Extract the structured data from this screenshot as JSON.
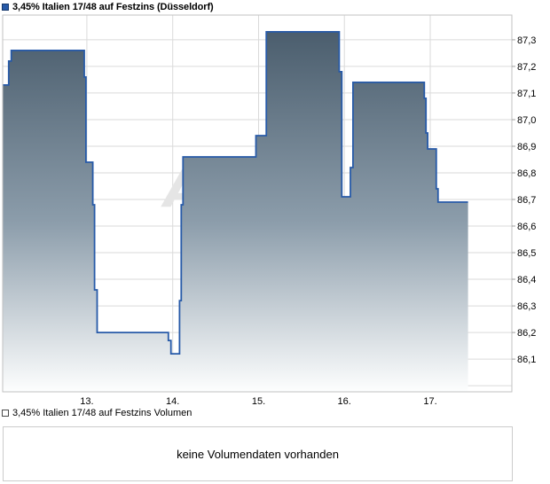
{
  "header": {
    "series_label": "3,45% Italien 17/48 auf Festzins (Düsseldorf)",
    "marker_color": "#275aa8"
  },
  "chart_data": {
    "type": "area",
    "step": "after",
    "title": "3,45% Italien 17/48 auf Festzins (Düsseldorf)",
    "xlabel": "",
    "ylabel": "",
    "grid": true,
    "legend_position": "top-left",
    "x_axis": {
      "ticks": [
        13,
        14,
        15,
        16,
        17
      ],
      "tick_labels": [
        "13.",
        "14.",
        "15.",
        "16.",
        "17."
      ],
      "range": [
        12.02,
        17.95
      ]
    },
    "y_axis": {
      "side": "right",
      "ticks": [
        87.3,
        87.2,
        87.1,
        87.0,
        86.9,
        86.8,
        86.7,
        86.6,
        86.5,
        86.4,
        86.3,
        86.2,
        86.1
      ],
      "tick_labels": [
        "87,3",
        "87,2",
        "87,1",
        "87,0",
        "86,9",
        "86,8",
        "86,7",
        "86,6",
        "86,5",
        "86,4",
        "86,3",
        "86,2",
        "86,1"
      ],
      "range": [
        85.977,
        87.393
      ],
      "extra_gridlines": [
        86.0
      ]
    },
    "series": [
      {
        "name": "3,45% Italien 17/48 auf Festzins",
        "points": [
          [
            12.02,
            87.13
          ],
          [
            12.09,
            87.22
          ],
          [
            12.12,
            87.26
          ],
          [
            12.97,
            87.16
          ],
          [
            12.99,
            86.84
          ],
          [
            13.07,
            86.68
          ],
          [
            13.09,
            86.36
          ],
          [
            13.12,
            86.2
          ],
          [
            13.95,
            86.17
          ],
          [
            13.98,
            86.12
          ],
          [
            14.08,
            86.32
          ],
          [
            14.1,
            86.68
          ],
          [
            14.12,
            86.86
          ],
          [
            14.97,
            86.94
          ],
          [
            15.09,
            87.33
          ],
          [
            15.94,
            87.18
          ],
          [
            15.97,
            86.71
          ],
          [
            16.07,
            86.82
          ],
          [
            16.1,
            87.14
          ],
          [
            16.93,
            87.08
          ],
          [
            16.95,
            86.95
          ],
          [
            16.97,
            86.89
          ],
          [
            17.07,
            86.74
          ],
          [
            17.09,
            86.69
          ],
          [
            17.44,
            86.69
          ]
        ]
      }
    ],
    "colors": {
      "line": "#275aa8",
      "fill_top": "#455868",
      "fill_mid": "#8c9dab",
      "fill_bottom": "#fdfefe",
      "grid": "#dadada",
      "border": "#c2c2c2",
      "tick": "#a0a0a0",
      "text": "#000000"
    },
    "watermark": {
      "glyph": "A",
      "color": "#e5e5e5"
    }
  },
  "volume": {
    "legend_label": "3,45% Italien 17/48 auf Festzins Volumen",
    "message": "keine Volumendaten vorhanden"
  }
}
